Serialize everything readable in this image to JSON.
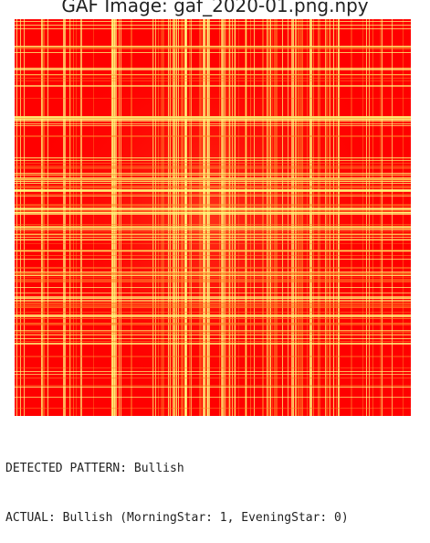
{
  "figure": {
    "title": "GAF Image: gaf_2020-01.png.npy",
    "image_icon": "gaf-heatmap-image",
    "colors": {
      "background": "#ff0000",
      "highlight": "#ffff80",
      "mid": "#ff8c2a"
    }
  },
  "output": {
    "lines": [
      "DETECTED PATTERN: Bullish",
      "ACTUAL: Bullish (MorningStar: 1, EveningStar: 0)"
    ]
  }
}
